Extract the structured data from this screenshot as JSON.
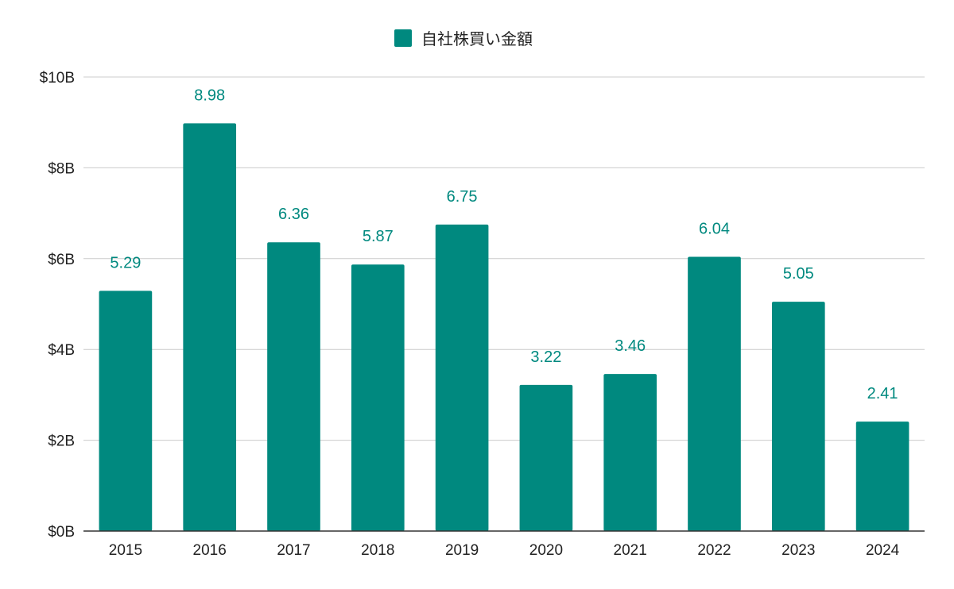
{
  "chart_data": {
    "type": "bar",
    "categories": [
      "2015",
      "2016",
      "2017",
      "2018",
      "2019",
      "2020",
      "2021",
      "2022",
      "2023",
      "2024"
    ],
    "series": [
      {
        "name": "自社株買い金額",
        "values": [
          5.29,
          8.98,
          6.36,
          5.87,
          6.75,
          3.22,
          3.46,
          6.04,
          5.05,
          2.41
        ],
        "data_labels": [
          "5.29",
          "8.98",
          "6.36",
          "5.87",
          "6.75",
          "3.22",
          "3.46",
          "6.04",
          "5.05",
          "2.41"
        ]
      }
    ],
    "ylim": [
      0,
      10
    ],
    "yticks": [
      0,
      2,
      4,
      6,
      8,
      10
    ],
    "ytick_labels": [
      "$0B",
      "$2B",
      "$4B",
      "$6B",
      "$8B",
      "$10B"
    ],
    "grid": true,
    "legend_position": "top-center",
    "colors": {
      "bar": "#00897f",
      "data_label": "#00897f"
    }
  }
}
